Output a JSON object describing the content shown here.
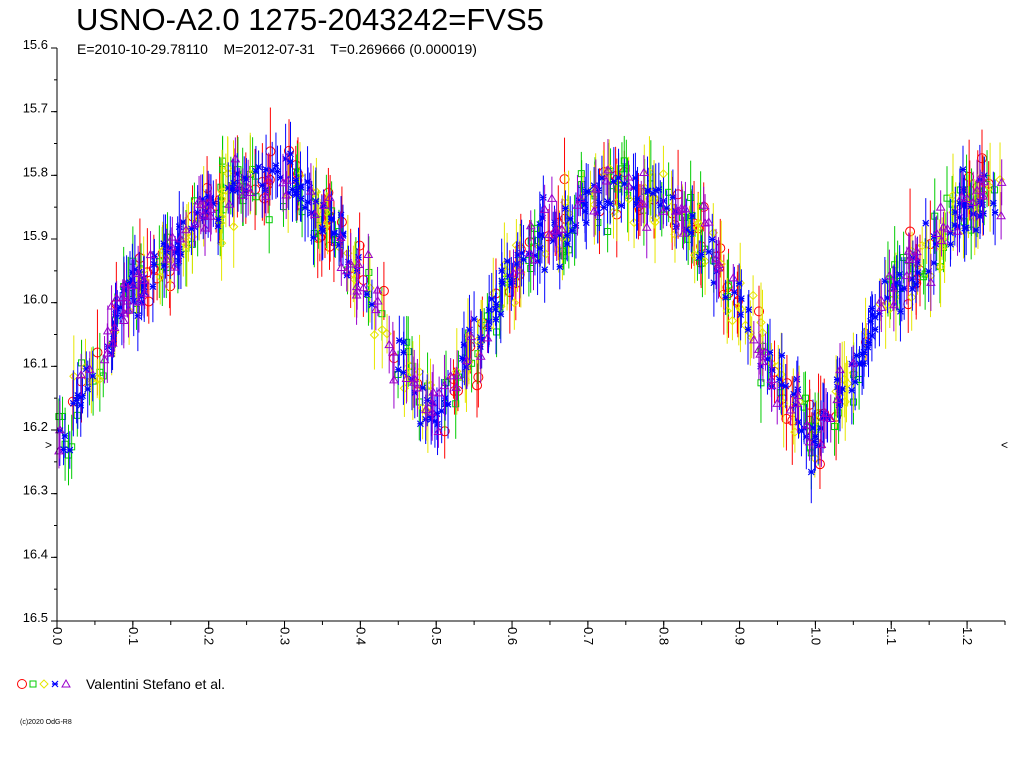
{
  "title": "USNO-A2.0 1275-2043242=FVS5",
  "subtitle": "E=2010-10-29.78110    M=2012-07-31    T=0.269666 (0.000019)",
  "legend": {
    "label": "Valentini Stefano et al.",
    "symbols": [
      {
        "shape": "circle",
        "color": "#ff0000"
      },
      {
        "shape": "square",
        "color": "#00cc00"
      },
      {
        "shape": "diamond",
        "color": "#e6e600"
      },
      {
        "shape": "star",
        "color": "#0000ff"
      },
      {
        "shape": "triangle",
        "color": "#9900cc"
      }
    ]
  },
  "copyright": "(c)2020 OdG-R8",
  "right_marker": "<",
  "left_marker": ">",
  "chart_data": {
    "type": "scatter",
    "title": "USNO-A2.0 1275-2043242=FVS5",
    "xlim": [
      0.0,
      1.25
    ],
    "ylim": [
      15.6,
      16.5
    ],
    "y_inverted": true,
    "x_ticks": [
      "0.0",
      "0.1",
      "0.2",
      "0.3",
      "0.4",
      "0.5",
      "0.6",
      "0.7",
      "0.8",
      "0.9",
      "1.0",
      "1.1",
      "1.2"
    ],
    "y_ticks": [
      "15.6",
      "15.7",
      "15.8",
      "15.9",
      "16.0",
      "16.1",
      "16.2",
      "16.3",
      "16.4",
      "16.5"
    ],
    "phase_curve": {
      "x": [
        0.0,
        0.05,
        0.1,
        0.15,
        0.2,
        0.25,
        0.3,
        0.35,
        0.4,
        0.45,
        0.5,
        0.55,
        0.6,
        0.65,
        0.7,
        0.75,
        0.8,
        0.85,
        0.9,
        0.95,
        1.0,
        1.05,
        1.1,
        1.15,
        1.2,
        1.25
      ],
      "y": [
        16.21,
        16.11,
        15.98,
        15.92,
        15.85,
        15.81,
        15.8,
        15.86,
        15.96,
        16.09,
        16.18,
        16.06,
        15.96,
        15.89,
        15.84,
        15.82,
        15.84,
        15.9,
        16.0,
        16.12,
        16.21,
        16.11,
        15.98,
        15.92,
        15.85,
        15.81
      ]
    },
    "series": [
      {
        "name": "Valentini Stefano et al.",
        "marker": "circle",
        "color": "#ff0000",
        "scatter": 0.028,
        "errorbar": 0.05
      },
      {
        "name": "Valentini Stefano et al.",
        "marker": "square",
        "color": "#00cc00",
        "scatter": 0.025,
        "errorbar": 0.045
      },
      {
        "name": "Valentini Stefano et al.",
        "marker": "diamond",
        "color": "#e6e600",
        "scatter": 0.025,
        "errorbar": 0.05
      },
      {
        "name": "Valentini Stefano et al.",
        "marker": "star",
        "color": "#0000ff",
        "scatter": 0.022,
        "errorbar": 0.04
      },
      {
        "name": "Valentini Stefano et al.",
        "marker": "triangle",
        "color": "#9900cc",
        "scatter": 0.022,
        "errorbar": 0.035
      }
    ]
  }
}
